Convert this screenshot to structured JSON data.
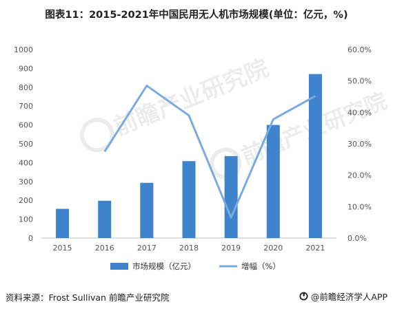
{
  "title": "图表11：2015-2021年中国民用无人机市场规模(单位：亿元，%)",
  "source": "资料来源：Frost Sullivan 前瞻产业研究院",
  "brand": "@前瞻经济学人APP",
  "brand_icon": "qianzhan-logo-icon",
  "watermark": "前瞻产业研究院",
  "colors": {
    "bar": "#3F83CC",
    "line": "#7AABE0",
    "axis": "#bfbfbf"
  },
  "chart_data": {
    "type": "bar",
    "categories": [
      "2015",
      "2016",
      "2017",
      "2018",
      "2019",
      "2020",
      "2021"
    ],
    "series": [
      {
        "name": "市场规模（亿元）",
        "type": "bar",
        "axis": "left",
        "values": [
          155,
          198,
          293,
          408,
          435,
          600,
          870
        ]
      },
      {
        "name": "增幅（%）",
        "type": "line",
        "axis": "right",
        "values": [
          null,
          27.5,
          48.5,
          39.0,
          6.5,
          37.8,
          45.2
        ]
      }
    ],
    "ylim_left": [
      0,
      1000
    ],
    "yticks_left": [
      "0",
      "100",
      "200",
      "300",
      "400",
      "500",
      "600",
      "700",
      "800",
      "900",
      "1000"
    ],
    "ylim_right": [
      0,
      60
    ],
    "yticks_right": [
      "0.0%",
      "10.0%",
      "20.0%",
      "30.0%",
      "40.0%",
      "50.0%",
      "60.0%"
    ],
    "grid": false,
    "legend": "bottom"
  }
}
